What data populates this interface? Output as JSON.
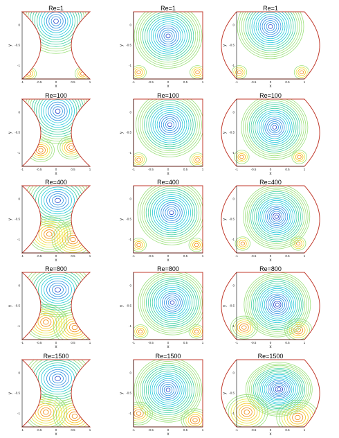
{
  "figure": {
    "rows": [
      "Re=1",
      "Re=100",
      "Re=400",
      "Re=800",
      "Re=1500"
    ],
    "columns": [
      "concave",
      "square",
      "convex"
    ]
  },
  "chart_data": {
    "type": "contour",
    "xlabel": "x",
    "ylabel": "y",
    "x_ticks": [
      "-1",
      "-0.5",
      "0",
      "0.5",
      "1"
    ],
    "y_ticks": [
      "0",
      "-0.5",
      "-1"
    ],
    "xlim": [
      -1,
      1
    ],
    "ylim": [
      -1,
      0
    ],
    "colormap": [
      "#d94a00",
      "#ef8a10",
      "#f5c21b",
      "#e8e84a",
      "#9be07a",
      "#3fd0a0",
      "#22c8d8",
      "#2a8fe0",
      "#1f3fc8"
    ],
    "panels": [
      {
        "title": "Re=1",
        "geometry": "concave",
        "bulge": -0.55,
        "vortex": [
          0.0,
          -0.14
        ],
        "levels": 14,
        "lower_vortices": [
          [
            -0.8,
            -0.92
          ],
          [
            0.78,
            -0.92
          ]
        ],
        "lower_strength": "weak"
      },
      {
        "title": "Re=1",
        "geometry": "square",
        "bulge": 0.0,
        "vortex": [
          0.0,
          -0.36
        ],
        "levels": 16,
        "lower_vortices": [
          [
            -0.85,
            -0.9
          ],
          [
            0.85,
            -0.9
          ]
        ],
        "lower_strength": "weak"
      },
      {
        "title": "Re=1",
        "geometry": "convex",
        "bulge": 0.45,
        "vortex": [
          0.0,
          -0.22
        ],
        "levels": 16,
        "lower_vortices": [
          [
            -0.92,
            -0.9
          ],
          [
            0.92,
            -0.9
          ]
        ],
        "lower_strength": "weak"
      },
      {
        "title": "Re=100",
        "geometry": "concave",
        "bulge": -0.55,
        "vortex": [
          0.05,
          -0.18
        ],
        "levels": 14,
        "lower_vortices": [
          [
            -0.45,
            -0.76
          ],
          [
            0.45,
            -0.72
          ]
        ],
        "lower_strength": "medium"
      },
      {
        "title": "Re=100",
        "geometry": "square",
        "bulge": 0.0,
        "vortex": [
          0.05,
          -0.38
        ],
        "levels": 16,
        "lower_vortices": [
          [
            -0.85,
            -0.9
          ],
          [
            0.85,
            -0.9
          ]
        ],
        "lower_strength": "weak"
      },
      {
        "title": "Re=100",
        "geometry": "convex",
        "bulge": 0.45,
        "vortex": [
          0.12,
          -0.42
        ],
        "levels": 17,
        "lower_vortices": [
          [
            -0.85,
            -0.86
          ],
          [
            0.85,
            -0.86
          ]
        ],
        "lower_strength": "weak"
      },
      {
        "title": "Re=400",
        "geometry": "concave",
        "bulge": -0.55,
        "vortex": [
          0.05,
          -0.22
        ],
        "levels": 12,
        "lower_vortices": [
          [
            -0.2,
            -0.72
          ],
          [
            0.5,
            -0.8
          ]
        ],
        "lower_strength": "strong"
      },
      {
        "title": "Re=400",
        "geometry": "square",
        "bulge": 0.0,
        "vortex": [
          0.1,
          -0.4
        ],
        "levels": 16,
        "lower_vortices": [
          [
            -0.85,
            -0.88
          ],
          [
            0.82,
            -0.88
          ]
        ],
        "lower_strength": "weak"
      },
      {
        "title": "Re=400",
        "geometry": "convex",
        "bulge": 0.45,
        "vortex": [
          0.18,
          -0.46
        ],
        "levels": 18,
        "lower_vortices": [
          [
            -0.82,
            -0.86
          ],
          [
            0.82,
            -0.86
          ]
        ],
        "lower_strength": "weak"
      },
      {
        "title": "Re=800",
        "geometry": "concave",
        "bulge": -0.55,
        "vortex": [
          0.05,
          -0.26
        ],
        "levels": 12,
        "lower_vortices": [
          [
            -0.3,
            -0.74
          ],
          [
            0.55,
            -0.82
          ]
        ],
        "lower_strength": "strong"
      },
      {
        "title": "Re=800",
        "geometry": "square",
        "bulge": 0.0,
        "vortex": [
          0.12,
          -0.45
        ],
        "levels": 17,
        "lower_vortices": [
          [
            -0.8,
            -0.88
          ],
          [
            0.82,
            -0.88
          ]
        ],
        "lower_strength": "weak"
      },
      {
        "title": "Re=800",
        "geometry": "convex",
        "bulge": 0.45,
        "vortex": [
          0.2,
          -0.48
        ],
        "levels": 18,
        "lower_vortices": [
          [
            -0.78,
            -0.82
          ],
          [
            0.82,
            -0.86
          ]
        ],
        "lower_strength": "medium"
      },
      {
        "title": "Re=1500",
        "geometry": "concave",
        "bulge": -0.55,
        "vortex": [
          0.05,
          -0.28
        ],
        "levels": 12,
        "lower_vortices": [
          [
            -0.3,
            -0.78
          ],
          [
            0.55,
            -0.84
          ]
        ],
        "lower_strength": "strong"
      },
      {
        "title": "Re=1500",
        "geometry": "square",
        "bulge": 0.0,
        "vortex": [
          0.0,
          -0.45
        ],
        "levels": 17,
        "lower_vortices": [
          [
            -0.85,
            -0.8
          ],
          [
            0.78,
            -0.9
          ]
        ],
        "lower_strength": "medium"
      },
      {
        "title": "Re=1500",
        "geometry": "convex",
        "bulge": 0.45,
        "vortex": [
          0.25,
          -0.44
        ],
        "levels": 18,
        "lower_vortices": [
          [
            -0.7,
            -0.78
          ],
          [
            0.8,
            -0.86
          ]
        ],
        "lower_strength": "strong"
      }
    ]
  }
}
